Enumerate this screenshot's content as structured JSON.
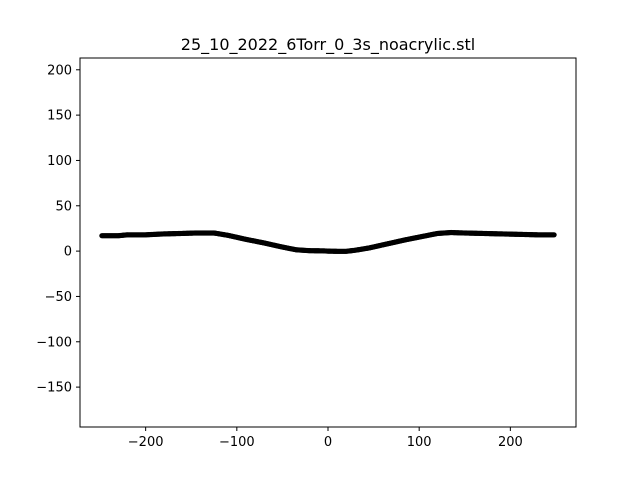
{
  "chart_data": {
    "type": "scatter",
    "title": "25_10_2022_6Torr_0_3s_noacrylic.stl",
    "xlabel": "",
    "ylabel": "",
    "xlim": [
      -272,
      272
    ],
    "ylim": [
      -194,
      213
    ],
    "xticks": [
      -200,
      -100,
      0,
      100,
      200
    ],
    "yticks": [
      -150,
      -100,
      -50,
      0,
      50,
      100,
      150,
      200
    ],
    "grid": false,
    "marker_color": "#000000",
    "series": [
      {
        "profile": [
          [
            -248,
            17
          ],
          [
            -230,
            17
          ],
          [
            -220,
            18
          ],
          [
            -200,
            18
          ],
          [
            -180,
            19
          ],
          [
            -160,
            19.5
          ],
          [
            -145,
            20
          ],
          [
            -125,
            20
          ],
          [
            -110,
            17.5
          ],
          [
            -90,
            13
          ],
          [
            -70,
            9
          ],
          [
            -50,
            4.5
          ],
          [
            -35,
            1.5
          ],
          [
            -20,
            0.5
          ],
          [
            -5,
            0.3
          ],
          [
            0,
            0
          ],
          [
            10,
            -0.2
          ],
          [
            20,
            -0.2
          ],
          [
            30,
            1
          ],
          [
            45,
            3.5
          ],
          [
            65,
            8
          ],
          [
            85,
            12.5
          ],
          [
            105,
            16.5
          ],
          [
            120,
            19.5
          ],
          [
            135,
            20.5
          ],
          [
            150,
            20
          ],
          [
            170,
            19.5
          ],
          [
            190,
            19
          ],
          [
            210,
            18.5
          ],
          [
            230,
            18
          ],
          [
            248,
            18
          ]
        ]
      }
    ]
  }
}
